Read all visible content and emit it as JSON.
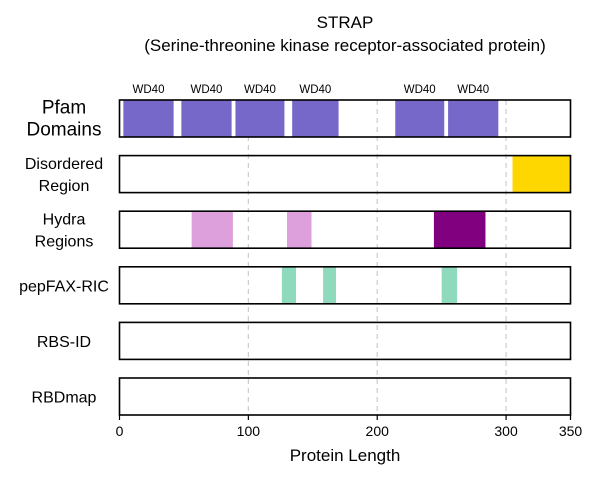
{
  "chart_data": {
    "type": "bar",
    "title": "STRAP",
    "subtitle": "(Serine-threonine kinase receptor-associated protein)",
    "xlabel": "Protein Length",
    "xlim": [
      0,
      350
    ],
    "xticks": [
      0,
      100,
      200,
      300,
      350
    ],
    "grid_lines_at": [
      100,
      200,
      300
    ],
    "tracks": [
      {
        "label": [
          "Pfam",
          "Domains"
        ],
        "segments": [
          {
            "start": 3,
            "end": 42,
            "label": "WD40",
            "color": "#7568c9"
          },
          {
            "start": 48,
            "end": 87,
            "label": "WD40",
            "color": "#7568c9"
          },
          {
            "start": 90,
            "end": 128,
            "label": "WD40",
            "color": "#7568c9"
          },
          {
            "start": 134,
            "end": 170,
            "label": "WD40",
            "color": "#7568c9"
          },
          {
            "start": 214,
            "end": 252,
            "label": "WD40",
            "color": "#7568c9"
          },
          {
            "start": 255,
            "end": 294,
            "label": "WD40",
            "color": "#7568c9"
          }
        ]
      },
      {
        "label": [
          "Disordered",
          "Region"
        ],
        "segments": [
          {
            "start": 305,
            "end": 350,
            "color": "#ffd700"
          }
        ]
      },
      {
        "label": [
          "Hydra",
          "Regions"
        ],
        "segments": [
          {
            "start": 56,
            "end": 88,
            "color": "#dda0dd"
          },
          {
            "start": 130,
            "end": 149,
            "color": "#dda0dd"
          },
          {
            "start": 244,
            "end": 284,
            "color": "#800080"
          }
        ]
      },
      {
        "label": [
          "pepFAX-RIC"
        ],
        "segments": [
          {
            "start": 126,
            "end": 137,
            "color": "#8fd9bd"
          },
          {
            "start": 158,
            "end": 168,
            "color": "#8fd9bd"
          },
          {
            "start": 250,
            "end": 262,
            "color": "#8fd9bd"
          }
        ]
      },
      {
        "label": [
          "RBS-ID"
        ],
        "segments": []
      },
      {
        "label": [
          "RBDmap"
        ],
        "segments": []
      }
    ]
  }
}
